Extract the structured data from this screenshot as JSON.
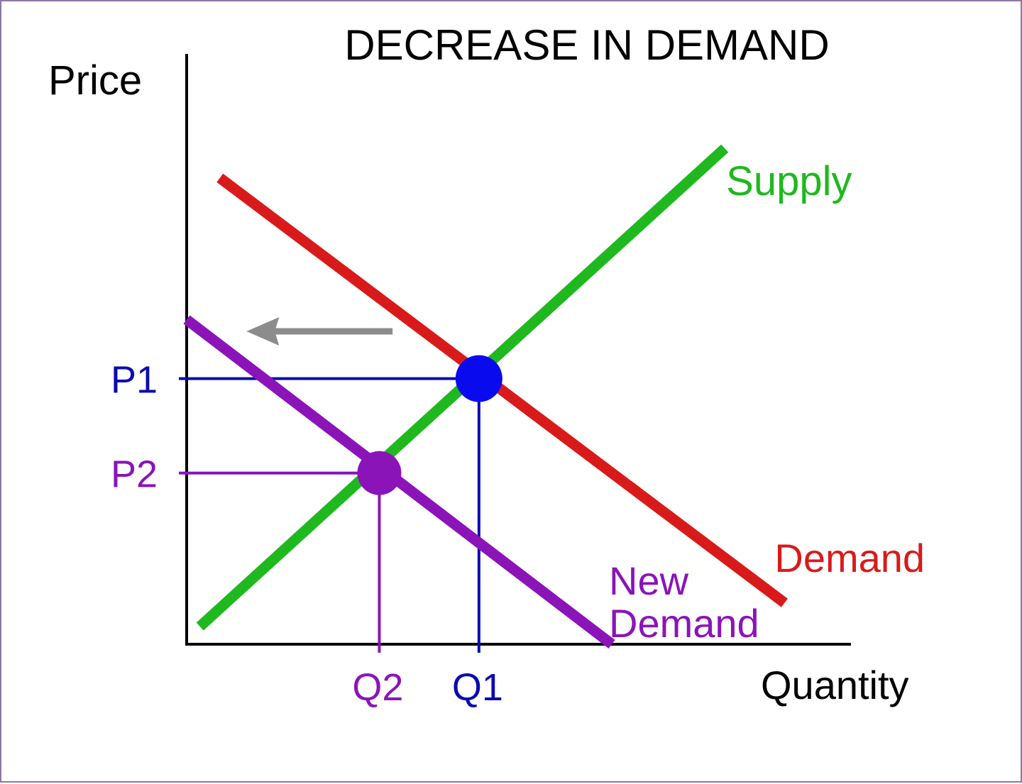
{
  "chart_data": {
    "type": "line",
    "title": "DECREASE IN DEMAND",
    "xlabel": "Quantity",
    "ylabel": "Price",
    "xlim": [
      0,
      100
    ],
    "ylim": [
      0,
      100
    ],
    "grid": false,
    "series": [
      {
        "name": "Supply",
        "color": "#1fb81f",
        "points": [
          [
            2,
            3
          ],
          [
            81,
            84
          ]
        ]
      },
      {
        "name": "Demand",
        "color": "#d91a1a",
        "points": [
          [
            5,
            79
          ],
          [
            90,
            7
          ]
        ]
      },
      {
        "name": "New Demand",
        "color": "#8a14b8",
        "points": [
          [
            0,
            55
          ],
          [
            64,
            0
          ]
        ]
      }
    ],
    "equilibria": [
      {
        "name": "P1",
        "qname": "Q1",
        "q": 44,
        "p": 45,
        "color": "#0a0aee",
        "guide_color": "#0b0bb0"
      },
      {
        "name": "P2",
        "qname": "Q2",
        "q": 29,
        "p": 29,
        "color": "#8a14b8",
        "guide_color": "#8a14b8"
      }
    ],
    "shift_arrow": {
      "from": [
        31,
        53
      ],
      "to": [
        9,
        53
      ],
      "color": "#8c8c8c"
    }
  }
}
